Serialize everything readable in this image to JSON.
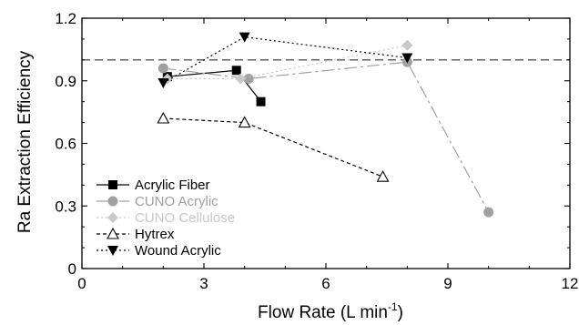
{
  "chart_data": {
    "type": "line",
    "title": "",
    "xlabel": "Flow Rate (L min",
    "xlabel_sup": "-1",
    "xlabel_close": ")",
    "ylabel": "Ra Extraction Efficiency",
    "xlim": [
      0,
      12
    ],
    "ylim": [
      0,
      1.2
    ],
    "xticks": [
      0,
      3,
      6,
      9,
      12
    ],
    "yticks": [
      0,
      0.3,
      0.6,
      0.9,
      1.2
    ],
    "xtick_labels": [
      "0",
      "3",
      "6",
      "9",
      "12"
    ],
    "ytick_labels": [
      "0",
      "0.3",
      "0.6",
      "0.9",
      "1.2"
    ],
    "reference_line": 1.0,
    "grid": false,
    "legend_position": "bottom-left",
    "series": [
      {
        "name": "Acrylic Fiber",
        "marker": "square-filled",
        "color": "#000000",
        "dash": "",
        "x": [
          2.1,
          3.8,
          4.4
        ],
        "y": [
          0.92,
          0.95,
          0.8
        ]
      },
      {
        "name": "CUNO Acrylic",
        "marker": "circle-filled",
        "color": "#a0a0a0",
        "dash": "14 4 3 4",
        "x": [
          2.0,
          4.1,
          8.0,
          10.0
        ],
        "y": [
          0.96,
          0.91,
          0.99,
          0.27
        ]
      },
      {
        "name": "CUNO Cellulose",
        "marker": "diamond-filled",
        "color": "#c8c8c8",
        "dash": "2 3",
        "x": [
          2.1,
          3.9,
          8.0
        ],
        "y": [
          0.91,
          0.91,
          1.07
        ]
      },
      {
        "name": "Hytrex",
        "marker": "triangle-open",
        "color": "#000000",
        "dash": "4 3",
        "x": [
          2.0,
          4.0,
          7.4
        ],
        "y": [
          0.72,
          0.7,
          0.44
        ]
      },
      {
        "name": "Wound Acrylic",
        "marker": "triangle-down-filled",
        "color": "#000000",
        "dash": "2 3",
        "x": [
          2.0,
          4.0,
          8.0
        ],
        "y": [
          0.89,
          1.11,
          1.01
        ]
      }
    ]
  }
}
